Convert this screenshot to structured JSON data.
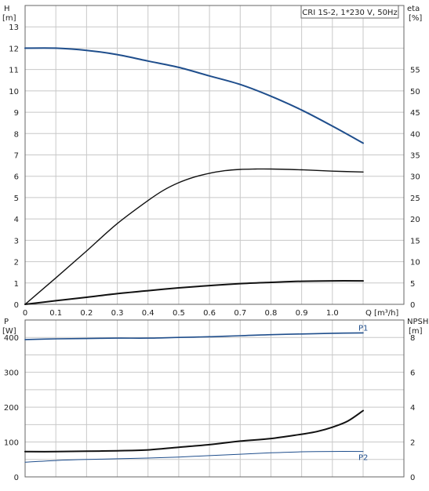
{
  "chart_data": [
    {
      "type": "line",
      "title": "CRI 1S-2, 1*230 V, 50Hz",
      "xlabel": "Q [m³/h]",
      "xlim": [
        0,
        1.1
      ],
      "xticks": [
        0,
        0.1,
        0.2,
        0.3,
        0.4,
        0.5,
        0.6,
        0.7,
        0.8,
        0.9,
        1.0
      ],
      "left_axis": {
        "label_top": "H",
        "label_unit": "[m]",
        "ylim": [
          0,
          14
        ],
        "ticks": [
          0,
          1,
          2,
          3,
          4,
          5,
          6,
          7,
          8,
          9,
          10,
          11,
          12,
          13
        ]
      },
      "right_axis": {
        "label_top": "eta",
        "label_unit": "[%]",
        "ylim": [
          0,
          70
        ],
        "ticks": [
          0,
          5,
          10,
          15,
          20,
          25,
          30,
          35,
          40,
          45,
          50,
          55
        ]
      },
      "grid": true,
      "series": [
        {
          "axis": "left",
          "color": "#1f4e8c",
          "width": 2,
          "x": [
            0.0,
            0.1,
            0.2,
            0.3,
            0.4,
            0.5,
            0.6,
            0.7,
            0.8,
            0.9,
            1.0,
            1.1
          ],
          "y": [
            12.0,
            12.0,
            11.9,
            11.7,
            11.4,
            11.1,
            10.7,
            10.3,
            9.75,
            9.1,
            8.35,
            7.55
          ]
        },
        {
          "axis": "right",
          "color": "#111111",
          "width": 1.4,
          "x": [
            0.0,
            0.1,
            0.2,
            0.3,
            0.4,
            0.45,
            0.5,
            0.55,
            0.6,
            0.65,
            0.7,
            0.75,
            0.8,
            0.9,
            1.0,
            1.1
          ],
          "y": [
            0.0,
            6.2,
            12.5,
            18.9,
            24.3,
            26.7,
            28.5,
            29.8,
            30.7,
            31.3,
            31.6,
            31.7,
            31.7,
            31.5,
            31.2,
            31.0
          ]
        },
        {
          "axis": "left",
          "color": "#111111",
          "width": 2,
          "x": [
            0.0,
            0.1,
            0.2,
            0.3,
            0.4,
            0.5,
            0.6,
            0.7,
            0.8,
            0.9,
            1.0,
            1.1
          ],
          "y": [
            0.0,
            0.17,
            0.33,
            0.5,
            0.64,
            0.77,
            0.88,
            0.97,
            1.03,
            1.08,
            1.1,
            1.1
          ]
        }
      ]
    },
    {
      "type": "line",
      "xlim": [
        0,
        1.1
      ],
      "left_axis": {
        "label_top": "P",
        "label_unit": "[W]",
        "ylim": [
          0,
          450
        ],
        "ticks": [
          0,
          100,
          200,
          300,
          400
        ]
      },
      "right_axis": {
        "label_top": "NPSH",
        "label_unit": "[m]",
        "ylim": [
          0,
          9
        ],
        "ticks": [
          0,
          2,
          4,
          6,
          8
        ]
      },
      "grid": true,
      "series": [
        {
          "name": "P1",
          "axis": "left",
          "color": "#1f4e8c",
          "width": 1.6,
          "x": [
            0.0,
            0.1,
            0.2,
            0.3,
            0.4,
            0.5,
            0.6,
            0.7,
            0.8,
            0.9,
            1.0,
            1.1
          ],
          "y": [
            394,
            396,
            397,
            398,
            398,
            400,
            402,
            405,
            408,
            410,
            412,
            413
          ]
        },
        {
          "name": "P2",
          "axis": "left",
          "color": "#1f4e8c",
          "width": 1,
          "x": [
            0.0,
            0.1,
            0.2,
            0.3,
            0.4,
            0.5,
            0.6,
            0.7,
            0.8,
            0.9,
            1.0,
            1.1
          ],
          "y": [
            42,
            47,
            50,
            52,
            54,
            57,
            61,
            65,
            69,
            72,
            73,
            73
          ]
        },
        {
          "axis": "right",
          "color": "#111111",
          "width": 2,
          "x": [
            0.0,
            0.1,
            0.2,
            0.3,
            0.4,
            0.5,
            0.6,
            0.7,
            0.8,
            0.9,
            0.95,
            1.0,
            1.05,
            1.1
          ],
          "y": [
            1.45,
            1.45,
            1.47,
            1.5,
            1.55,
            1.7,
            1.85,
            2.05,
            2.2,
            2.45,
            2.6,
            2.85,
            3.2,
            3.8
          ]
        }
      ]
    }
  ]
}
